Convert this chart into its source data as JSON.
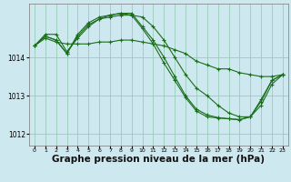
{
  "background_color": "#cee8f0",
  "plot_bg_color": "#cee8f0",
  "grid_color": "#99ccbb",
  "line_color": "#1a6e1a",
  "marker_color": "#1a6e1a",
  "xlabel": "Graphe pression niveau de la mer (hPa)",
  "xlabel_fontsize": 7.5,
  "ylim": [
    1011.7,
    1015.4
  ],
  "xlim": [
    -0.5,
    23.5
  ],
  "yticks": [
    1012,
    1013,
    1014
  ],
  "xticks": [
    0,
    1,
    2,
    3,
    4,
    5,
    6,
    7,
    8,
    9,
    10,
    11,
    12,
    13,
    14,
    15,
    16,
    17,
    18,
    19,
    20,
    21,
    22,
    23
  ],
  "series": [
    {
      "x": [
        0,
        1,
        2,
        3,
        4,
        5,
        6,
        7,
        8,
        9,
        10,
        11,
        12,
        13,
        14,
        15,
        16,
        17,
        18,
        19,
        20,
        21,
        22,
        23
      ],
      "y": [
        1014.3,
        1014.5,
        1014.4,
        1014.35,
        1014.35,
        1014.35,
        1014.4,
        1014.4,
        1014.45,
        1014.45,
        1014.4,
        1014.35,
        1014.3,
        1014.2,
        1014.1,
        1013.9,
        1013.8,
        1013.7,
        1013.7,
        1013.6,
        1013.55,
        1013.5,
        1013.5,
        1013.55
      ]
    },
    {
      "x": [
        0,
        1,
        2,
        3,
        4,
        5,
        6,
        7,
        8,
        9,
        10,
        11,
        12,
        13,
        14,
        15,
        16,
        17,
        18,
        19,
        20,
        21,
        22,
        23
      ],
      "y": [
        1014.3,
        1014.55,
        1014.45,
        1014.1,
        1014.55,
        1014.85,
        1015.0,
        1015.05,
        1015.1,
        1015.1,
        1015.05,
        1014.8,
        1014.45,
        1014.0,
        1013.55,
        1013.2,
        1013.0,
        1012.75,
        1012.55,
        1012.45,
        1012.45,
        1012.75,
        1013.3,
        1013.55
      ]
    },
    {
      "x": [
        0,
        1,
        2,
        3,
        4,
        5,
        6,
        7,
        8,
        9,
        10,
        11,
        12,
        13,
        14,
        15,
        16,
        17,
        18,
        19,
        20,
        21,
        22,
        23
      ],
      "y": [
        1014.3,
        1014.55,
        1014.45,
        1014.1,
        1014.6,
        1014.9,
        1015.05,
        1015.1,
        1015.15,
        1015.1,
        1014.75,
        1014.35,
        1013.85,
        1013.4,
        1012.95,
        1012.6,
        1012.45,
        1012.42,
        1012.4,
        1012.38,
        1012.45,
        1012.9,
        1013.4,
        1013.55
      ]
    },
    {
      "x": [
        0,
        1,
        2,
        3,
        4,
        5,
        6,
        7,
        8,
        9,
        10,
        11,
        12,
        13,
        14,
        15,
        16,
        17,
        18,
        19,
        20,
        21,
        22,
        23
      ],
      "y": [
        1014.3,
        1014.6,
        1014.6,
        1014.15,
        1014.5,
        1014.8,
        1015.0,
        1015.1,
        1015.15,
        1015.15,
        1014.8,
        1014.45,
        1014.0,
        1013.5,
        1013.0,
        1012.65,
        1012.5,
        1012.43,
        1012.4,
        1012.37,
        1012.45,
        1012.85,
        1013.4,
        1013.55
      ]
    }
  ]
}
